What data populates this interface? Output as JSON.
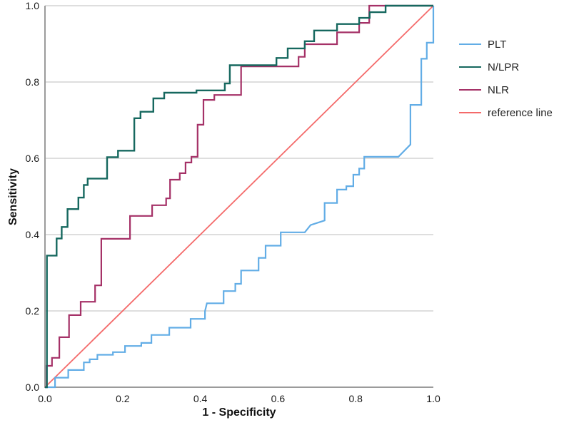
{
  "chart_data": {
    "type": "line",
    "subtype": "roc-step-curves",
    "title": "",
    "xlabel": "1 - Specificity",
    "ylabel": "Sensitivity",
    "xlim": [
      0,
      1
    ],
    "ylim": [
      0,
      1
    ],
    "xticks": [
      0.0,
      0.2,
      0.4,
      0.6,
      0.8,
      1.0
    ],
    "yticks": [
      0.0,
      0.2,
      0.4,
      0.6,
      0.8,
      1.0
    ],
    "grid": "horizontal",
    "legend_position": "right",
    "series": [
      {
        "name": "PLT",
        "color": "#62ADE6",
        "stroke_width": 2.2,
        "points": [
          [
            0,
            0
          ],
          [
            0.026,
            0
          ],
          [
            0.026,
            0.025
          ],
          [
            0.06,
            0.025
          ],
          [
            0.06,
            0.045
          ],
          [
            0.1,
            0.045
          ],
          [
            0.1,
            0.065
          ],
          [
            0.115,
            0.065
          ],
          [
            0.115,
            0.073
          ],
          [
            0.135,
            0.073
          ],
          [
            0.135,
            0.085
          ],
          [
            0.175,
            0.085
          ],
          [
            0.175,
            0.092
          ],
          [
            0.206,
            0.092
          ],
          [
            0.206,
            0.108
          ],
          [
            0.248,
            0.108
          ],
          [
            0.248,
            0.116
          ],
          [
            0.274,
            0.116
          ],
          [
            0.274,
            0.137
          ],
          [
            0.32,
            0.137
          ],
          [
            0.32,
            0.156
          ],
          [
            0.375,
            0.156
          ],
          [
            0.375,
            0.179
          ],
          [
            0.412,
            0.179
          ],
          [
            0.412,
            0.199
          ],
          [
            0.417,
            0.22
          ],
          [
            0.46,
            0.22
          ],
          [
            0.46,
            0.252
          ],
          [
            0.49,
            0.252
          ],
          [
            0.49,
            0.271
          ],
          [
            0.505,
            0.271
          ],
          [
            0.505,
            0.306
          ],
          [
            0.55,
            0.306
          ],
          [
            0.55,
            0.339
          ],
          [
            0.568,
            0.339
          ],
          [
            0.568,
            0.371
          ],
          [
            0.607,
            0.371
          ],
          [
            0.607,
            0.406
          ],
          [
            0.669,
            0.406
          ],
          [
            0.684,
            0.425
          ],
          [
            0.72,
            0.437
          ],
          [
            0.72,
            0.483
          ],
          [
            0.752,
            0.483
          ],
          [
            0.752,
            0.518
          ],
          [
            0.776,
            0.518
          ],
          [
            0.776,
            0.527
          ],
          [
            0.794,
            0.527
          ],
          [
            0.794,
            0.557
          ],
          [
            0.809,
            0.557
          ],
          [
            0.809,
            0.573
          ],
          [
            0.822,
            0.573
          ],
          [
            0.822,
            0.604
          ],
          [
            0.91,
            0.604
          ],
          [
            0.941,
            0.636
          ],
          [
            0.941,
            0.74
          ],
          [
            0.969,
            0.74
          ],
          [
            0.969,
            0.861
          ],
          [
            0.983,
            0.861
          ],
          [
            0.983,
            0.903
          ],
          [
            1,
            0.903
          ],
          [
            1,
            1
          ]
        ]
      },
      {
        "name": "N/LPR",
        "color": "#16685F",
        "stroke_width": 2.4,
        "points": [
          [
            0,
            0
          ],
          [
            0.005,
            0
          ],
          [
            0.005,
            0.345
          ],
          [
            0.03,
            0.345
          ],
          [
            0.03,
            0.39
          ],
          [
            0.043,
            0.39
          ],
          [
            0.043,
            0.42
          ],
          [
            0.058,
            0.42
          ],
          [
            0.058,
            0.467
          ],
          [
            0.086,
            0.467
          ],
          [
            0.086,
            0.497
          ],
          [
            0.1,
            0.497
          ],
          [
            0.1,
            0.53
          ],
          [
            0.11,
            0.53
          ],
          [
            0.11,
            0.547
          ],
          [
            0.16,
            0.547
          ],
          [
            0.16,
            0.603
          ],
          [
            0.188,
            0.603
          ],
          [
            0.188,
            0.62
          ],
          [
            0.23,
            0.62
          ],
          [
            0.23,
            0.705
          ],
          [
            0.246,
            0.705
          ],
          [
            0.246,
            0.722
          ],
          [
            0.279,
            0.722
          ],
          [
            0.279,
            0.757
          ],
          [
            0.307,
            0.757
          ],
          [
            0.307,
            0.772
          ],
          [
            0.39,
            0.772
          ],
          [
            0.39,
            0.778
          ],
          [
            0.463,
            0.778
          ],
          [
            0.463,
            0.796
          ],
          [
            0.476,
            0.796
          ],
          [
            0.476,
            0.844
          ],
          [
            0.596,
            0.844
          ],
          [
            0.596,
            0.863
          ],
          [
            0.625,
            0.863
          ],
          [
            0.625,
            0.888
          ],
          [
            0.669,
            0.888
          ],
          [
            0.669,
            0.907
          ],
          [
            0.693,
            0.907
          ],
          [
            0.693,
            0.935
          ],
          [
            0.752,
            0.935
          ],
          [
            0.752,
            0.952
          ],
          [
            0.809,
            0.952
          ],
          [
            0.809,
            0.968
          ],
          [
            0.836,
            0.968
          ],
          [
            0.836,
            0.983
          ],
          [
            0.877,
            0.983
          ],
          [
            0.877,
            1
          ],
          [
            1,
            1
          ]
        ]
      },
      {
        "name": "NLR",
        "color": "#A53167",
        "stroke_width": 2.2,
        "points": [
          [
            0,
            0
          ],
          [
            0.004,
            0
          ],
          [
            0.004,
            0.056
          ],
          [
            0.018,
            0.056
          ],
          [
            0.018,
            0.077
          ],
          [
            0.037,
            0.077
          ],
          [
            0.037,
            0.131
          ],
          [
            0.062,
            0.131
          ],
          [
            0.062,
            0.189
          ],
          [
            0.092,
            0.189
          ],
          [
            0.092,
            0.224
          ],
          [
            0.129,
            0.224
          ],
          [
            0.129,
            0.267
          ],
          [
            0.145,
            0.267
          ],
          [
            0.145,
            0.389
          ],
          [
            0.219,
            0.389
          ],
          [
            0.219,
            0.449
          ],
          [
            0.276,
            0.449
          ],
          [
            0.276,
            0.477
          ],
          [
            0.312,
            0.477
          ],
          [
            0.312,
            0.495
          ],
          [
            0.322,
            0.495
          ],
          [
            0.322,
            0.544
          ],
          [
            0.347,
            0.544
          ],
          [
            0.347,
            0.561
          ],
          [
            0.362,
            0.561
          ],
          [
            0.362,
            0.589
          ],
          [
            0.377,
            0.589
          ],
          [
            0.377,
            0.604
          ],
          [
            0.393,
            0.604
          ],
          [
            0.393,
            0.688
          ],
          [
            0.408,
            0.688
          ],
          [
            0.408,
            0.753
          ],
          [
            0.436,
            0.753
          ],
          [
            0.436,
            0.766
          ],
          [
            0.505,
            0.766
          ],
          [
            0.505,
            0.841
          ],
          [
            0.653,
            0.841
          ],
          [
            0.653,
            0.866
          ],
          [
            0.669,
            0.866
          ],
          [
            0.669,
            0.899
          ],
          [
            0.752,
            0.899
          ],
          [
            0.752,
            0.93
          ],
          [
            0.809,
            0.93
          ],
          [
            0.809,
            0.955
          ],
          [
            0.835,
            0.955
          ],
          [
            0.835,
            1
          ],
          [
            1,
            1
          ]
        ]
      },
      {
        "name": "reference line",
        "color": "#F46A6A",
        "stroke_width": 1.8,
        "points": [
          [
            0,
            0
          ],
          [
            1,
            1
          ]
        ]
      }
    ]
  },
  "styles": {
    "grid_color": "#C9C9C9",
    "axis_color": "#9B9B9B",
    "tick_text_color": "#1A1A1A",
    "background": "#FFFFFF"
  }
}
